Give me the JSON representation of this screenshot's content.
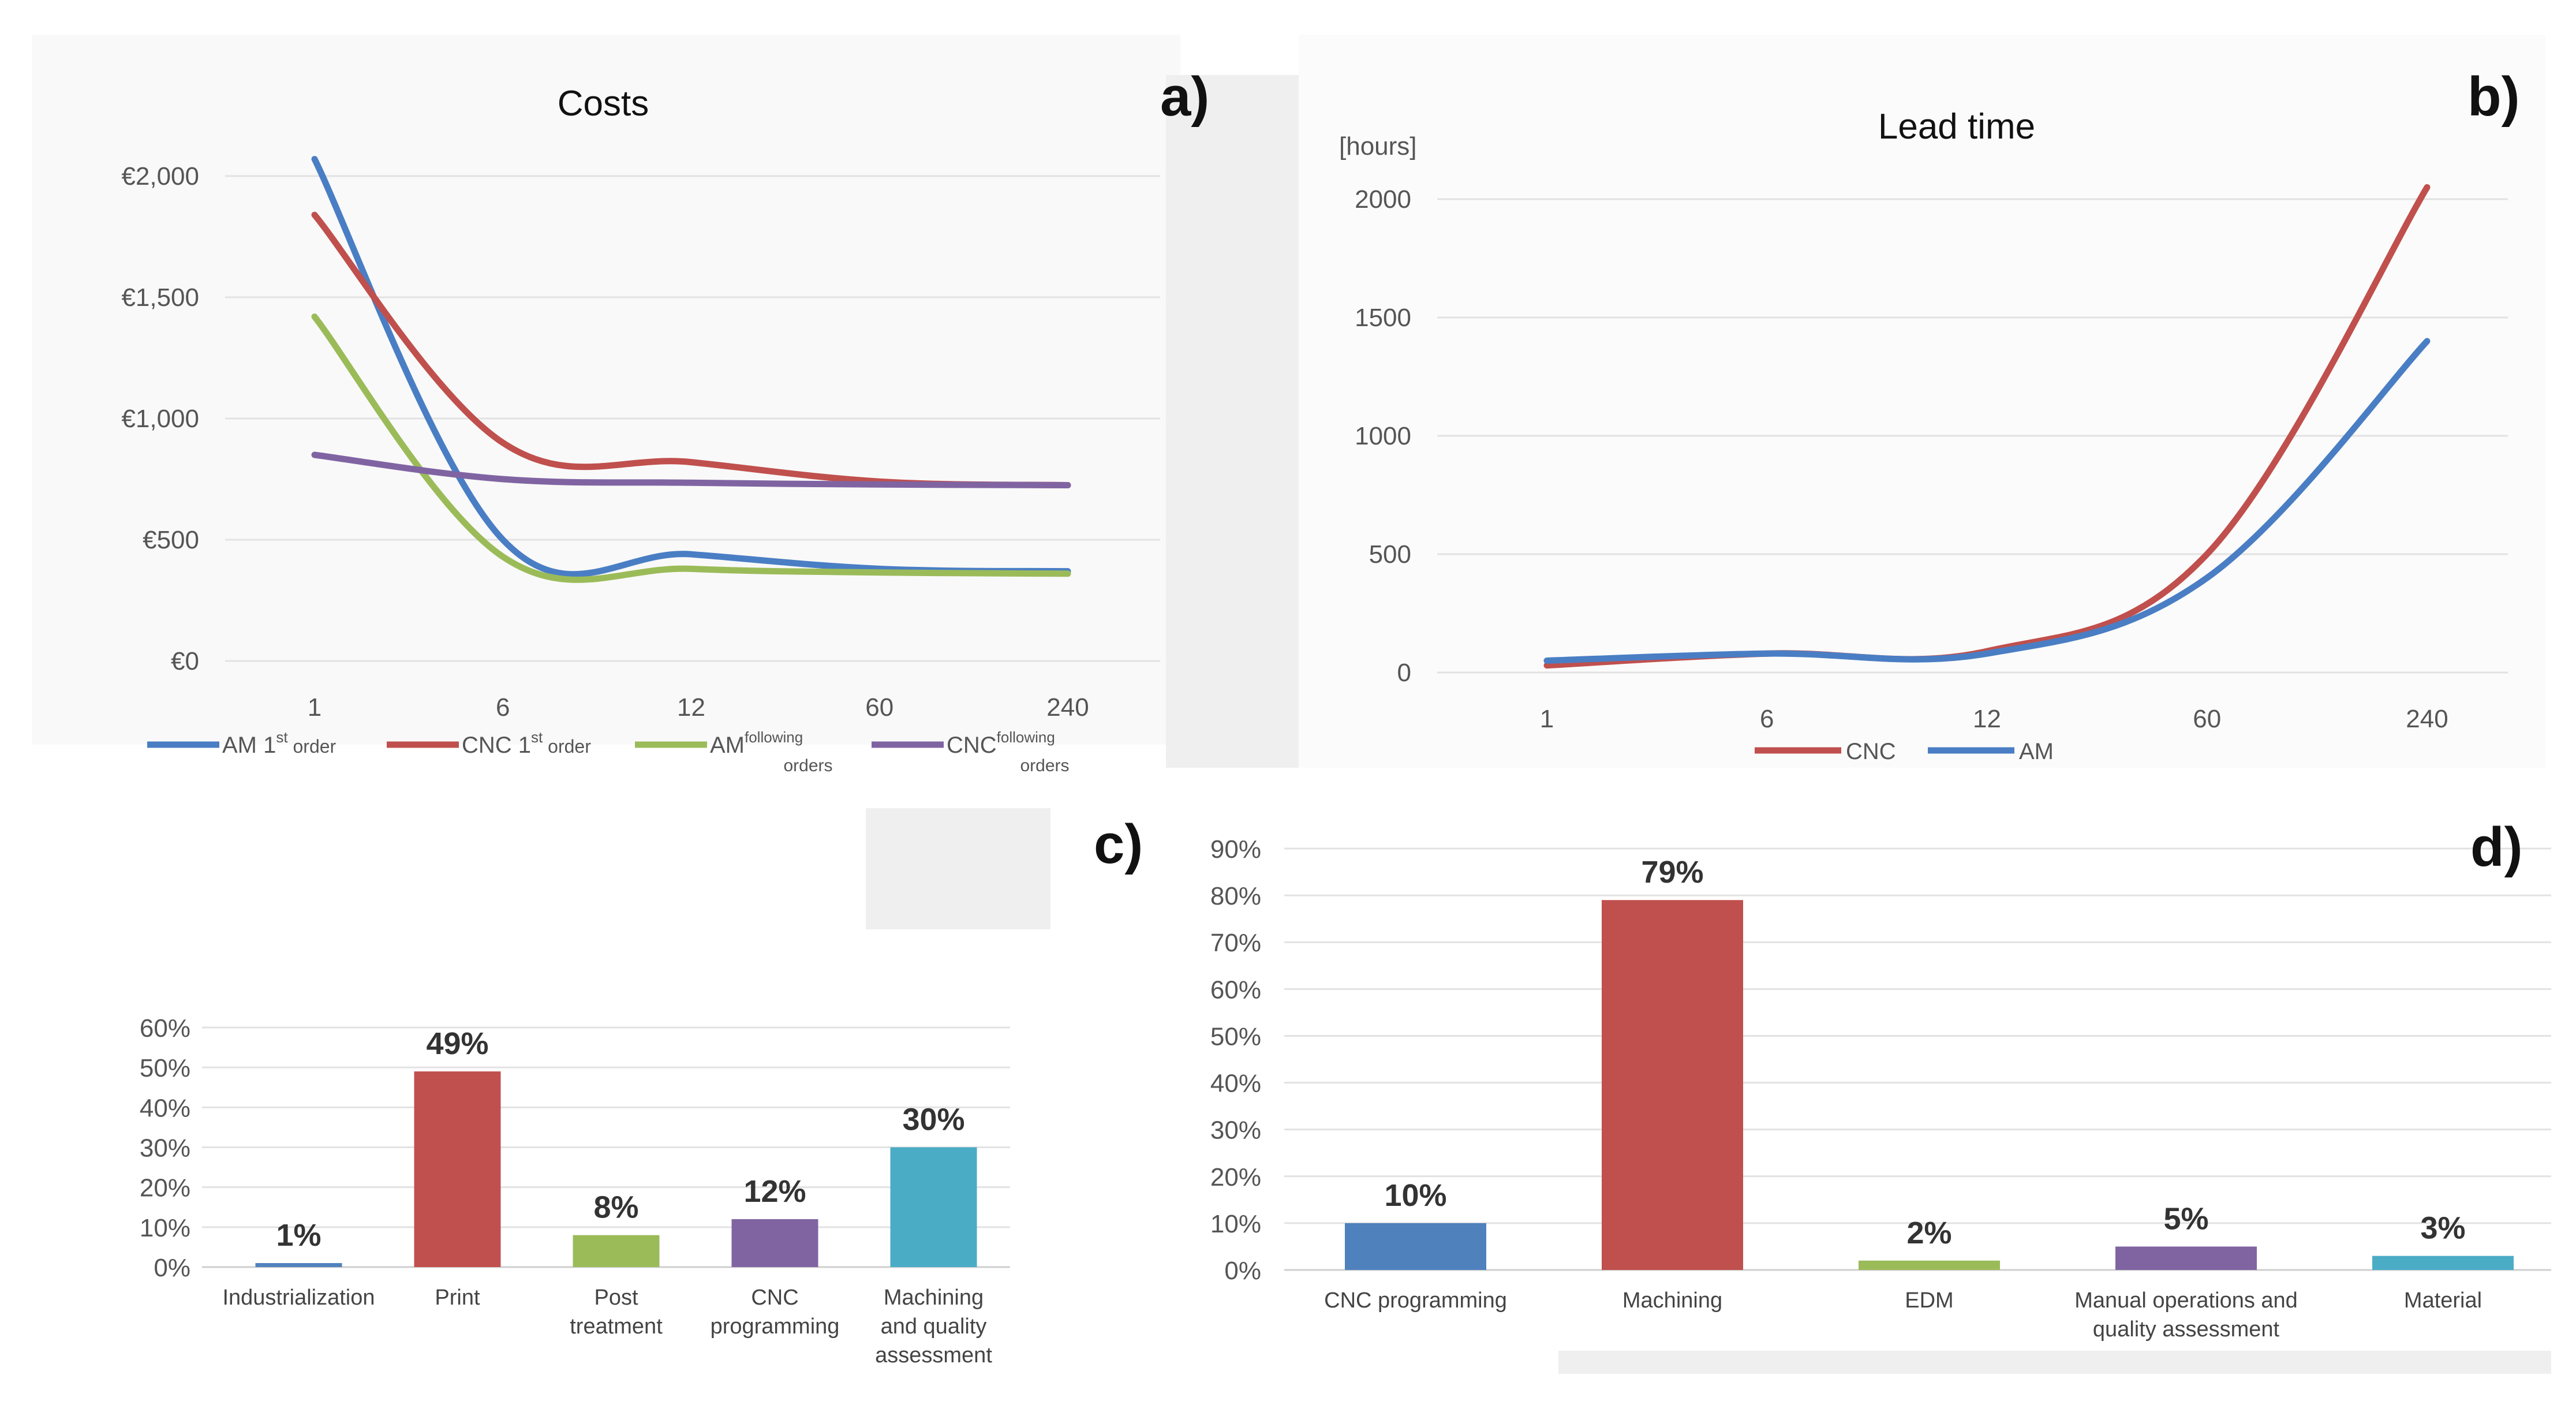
{
  "chart_data": [
    {
      "id": "a",
      "panel_label": "a)",
      "type": "line",
      "title": "Costs",
      "categories": [
        "1",
        "6",
        "12",
        "60",
        "240"
      ],
      "ylim": [
        0,
        2000
      ],
      "yticks": [
        0,
        500,
        1000,
        1500,
        2000
      ],
      "ytick_labels": [
        "€0",
        "€500",
        "€1,000",
        "€1,500",
        "€2,000"
      ],
      "grid": true,
      "legend_position": "bottom",
      "series": [
        {
          "name": "AM 1st order",
          "label_main": "AM 1",
          "label_sup": "st",
          "label_tail": "order",
          "color": "#4a7ec4",
          "values": [
            2070,
            500,
            440,
            380,
            370
          ]
        },
        {
          "name": "CNC 1st order",
          "label_main": "CNC 1",
          "label_sup": "st",
          "label_tail": "order",
          "color": "#c0504d",
          "values": [
            1840,
            900,
            820,
            740,
            725
          ]
        },
        {
          "name": "AM following orders",
          "label_main": "AM",
          "label_sup": "following",
          "label_tail": "orders",
          "color": "#9bbb59",
          "values": [
            1420,
            430,
            380,
            365,
            360
          ]
        },
        {
          "name": "CNC following orders",
          "label_main": "CNC",
          "label_sup": "following",
          "label_tail": "orders",
          "color": "#8064a2",
          "values": [
            850,
            750,
            735,
            728,
            725
          ]
        }
      ]
    },
    {
      "id": "b",
      "panel_label": "b)",
      "type": "line",
      "title": "Lead time",
      "ylabel": "[hours]",
      "categories": [
        "1",
        "6",
        "12",
        "60",
        "240"
      ],
      "ylim": [
        0,
        2000
      ],
      "yticks": [
        0,
        500,
        1000,
        1500,
        2000
      ],
      "ytick_labels": [
        "0",
        "500",
        "1000",
        "1500",
        "2000"
      ],
      "grid": true,
      "legend_position": "bottom",
      "series": [
        {
          "name": "CNC",
          "color": "#c0504d",
          "values": [
            30,
            80,
            90,
            500,
            2050
          ]
        },
        {
          "name": "AM",
          "color": "#4a7ec4",
          "values": [
            50,
            80,
            80,
            400,
            1400
          ]
        }
      ]
    },
    {
      "id": "c",
      "panel_label": "c)",
      "type": "bar",
      "categories": [
        [
          "Industrialization"
        ],
        [
          "Print"
        ],
        [
          "Post",
          "treatment"
        ],
        [
          "CNC",
          "programming"
        ],
        [
          "Machining",
          "and quality",
          "assessment"
        ]
      ],
      "values": [
        1,
        49,
        8,
        12,
        30
      ],
      "data_labels": [
        "1%",
        "49%",
        "8%",
        "12%",
        "30%"
      ],
      "colors": [
        "#4f81bd",
        "#c0504d",
        "#9bbb59",
        "#8064a2",
        "#4bacc6"
      ],
      "ylim": [
        0,
        60
      ],
      "yticks": [
        0,
        10,
        20,
        30,
        40,
        50,
        60
      ],
      "ytick_labels": [
        "0%",
        "10%",
        "20%",
        "30%",
        "40%",
        "50%",
        "60%"
      ],
      "grid": true
    },
    {
      "id": "d",
      "panel_label": "d)",
      "type": "bar",
      "categories": [
        [
          "CNC programming"
        ],
        [
          "Machining"
        ],
        [
          "EDM"
        ],
        [
          "Manual operations and",
          "quality assessment"
        ],
        [
          "Material"
        ]
      ],
      "values": [
        10,
        79,
        2,
        5,
        3
      ],
      "data_labels": [
        "10%",
        "79%",
        "2%",
        "5%",
        "3%"
      ],
      "colors": [
        "#4f81bd",
        "#c0504d",
        "#9bbb59",
        "#8064a2",
        "#4bacc6"
      ],
      "ylim": [
        0,
        90
      ],
      "yticks": [
        0,
        10,
        20,
        30,
        40,
        50,
        60,
        70,
        80,
        90
      ],
      "ytick_labels": [
        "0%",
        "10%",
        "20%",
        "30%",
        "40%",
        "50%",
        "60%",
        "70%",
        "80%",
        "90%"
      ],
      "grid": true
    }
  ]
}
